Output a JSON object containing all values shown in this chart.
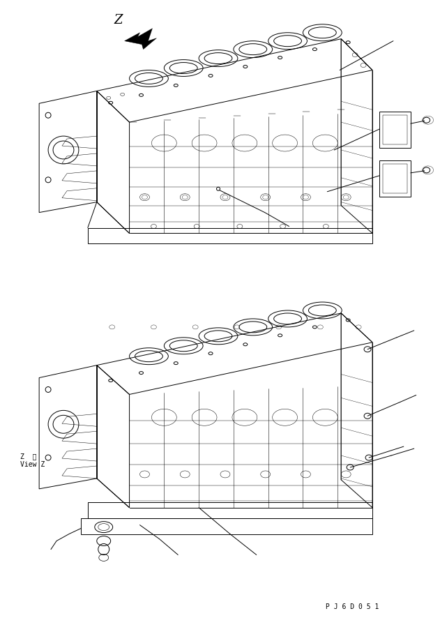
{
  "bg_color": "#ffffff",
  "lc": "#000000",
  "lw": 0.7,
  "fig_w": 6.31,
  "fig_h": 8.87,
  "dpi": 100,
  "part_code": "P J 6 D 0 5 1",
  "view_label_1": "Z  規",
  "view_label_2": "View Z"
}
